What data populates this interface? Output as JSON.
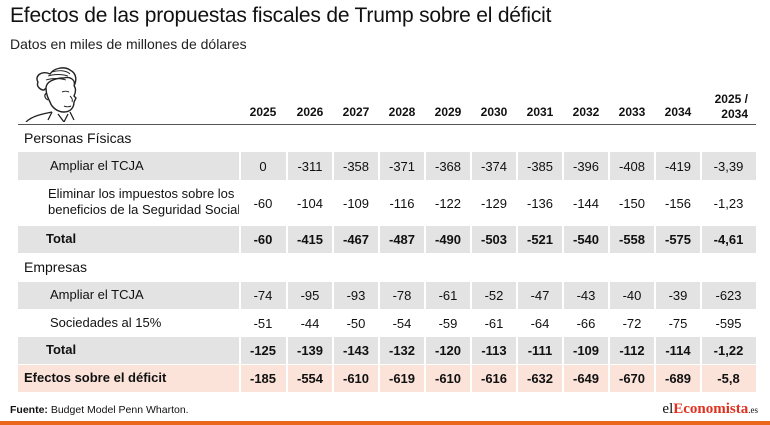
{
  "title": "Efectos de las propuestas fiscales de Trump sobre el déficit",
  "subtitle": "Datos en miles de millones de dólares",
  "columns": [
    "2025",
    "2026",
    "2027",
    "2028",
    "2029",
    "2030",
    "2031",
    "2032",
    "2033",
    "2034"
  ],
  "last_column": [
    "2025 /",
    "2034"
  ],
  "sections": [
    {
      "title": "Personas Físicas",
      "rows": [
        {
          "label": "Ampliar el TCJA",
          "values": [
            "0",
            "-311",
            "-358",
            "-371",
            "-368",
            "-374",
            "-385",
            "-396",
            "-408",
            "-419",
            "-3,39"
          ]
        },
        {
          "label_lines": [
            "Eliminar los impuestos sobre los",
            "beneficios de la Seguridad Social"
          ],
          "values": [
            "-60",
            "-104",
            "-109",
            "-116",
            "-122",
            "-129",
            "-136",
            "-144",
            "-150",
            "-156",
            "-1,23"
          ]
        },
        {
          "label": "Total",
          "values": [
            "-60",
            "-415",
            "-467",
            "-487",
            "-490",
            "-503",
            "-521",
            "-540",
            "-558",
            "-575",
            "-4,61"
          ]
        }
      ]
    },
    {
      "title": "Empresas",
      "rows": [
        {
          "label": "Ampliar el TCJA",
          "values": [
            "-74",
            "-95",
            "-93",
            "-78",
            "-61",
            "-52",
            "-47",
            "-43",
            "-40",
            "-39",
            "-623"
          ]
        },
        {
          "label": "Sociedades al 15%",
          "values": [
            "-51",
            "-44",
            "-50",
            "-54",
            "-59",
            "-61",
            "-64",
            "-66",
            "-72",
            "-75",
            "-595"
          ]
        },
        {
          "label": "Total",
          "values": [
            "-125",
            "-139",
            "-143",
            "-132",
            "-120",
            "-113",
            "-111",
            "-109",
            "-112",
            "-114",
            "-1,22"
          ]
        }
      ]
    }
  ],
  "deficit_row": {
    "label": "Efectos sobre el déficit",
    "values": [
      "-185",
      "-554",
      "-610",
      "-619",
      "-610",
      "-616",
      "-632",
      "-649",
      "-670",
      "-689",
      "-5,8"
    ]
  },
  "source": {
    "label": "Fuente:",
    "text": " Budget Model Penn Wharton."
  },
  "logo": {
    "prefix": "el",
    "accent": "Economista",
    "suffix": ".es"
  },
  "colors": {
    "row_band": "#e3e3e3",
    "deficit_band": "#fbe3da",
    "brand_orange": "#e8671c",
    "logo_accent": "#e0301e"
  },
  "icon": "trump-portrait-illustration"
}
